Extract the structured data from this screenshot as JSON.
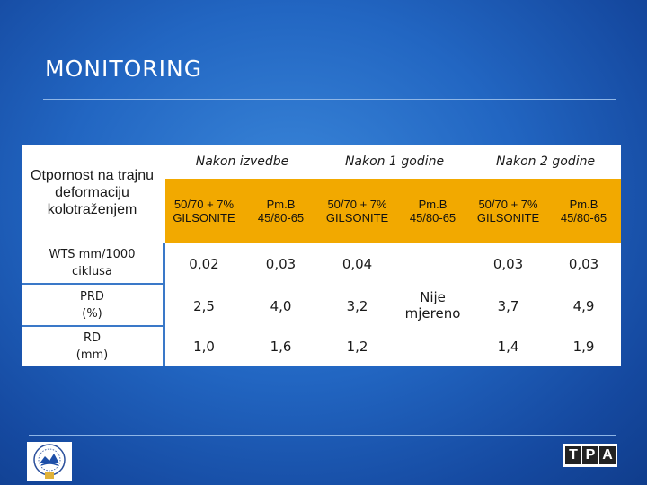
{
  "title": "MONITORING",
  "table": {
    "corner_label": [
      "Otpornost na trajnu",
      "deformaciju",
      "kolotraženjem"
    ],
    "periods": [
      "Nakon izvedbe",
      "Nakon 1 godine",
      "Nakon 2 godine"
    ],
    "subheaders": [
      [
        "50/70 + 7%",
        "GILSONITE"
      ],
      [
        "Pm.B",
        "45/80-65"
      ],
      [
        "50/70 + 7%",
        "GILSONITE"
      ],
      [
        "Pm.B",
        "45/80-65"
      ],
      [
        "50/70 + 7%",
        "GILSONITE"
      ],
      [
        "Pm.B",
        "45/80-65"
      ]
    ],
    "rows": [
      {
        "label": [
          "WTS mm/1000",
          "ciklusa"
        ],
        "values": [
          "0,02",
          "0,03",
          "0,04",
          "0,03",
          "0,03"
        ]
      },
      {
        "label": [
          "PRD",
          "(%)"
        ],
        "values": [
          "2,5",
          "4,0",
          "3,2",
          "3,7",
          "4,9"
        ]
      },
      {
        "label": [
          "RD",
          "(mm)"
        ],
        "values": [
          "1,0",
          "1,6",
          "1,2",
          "1,4",
          "1,9"
        ]
      }
    ],
    "not_measured": [
      "Nije",
      "mjereno"
    ]
  },
  "logos": {
    "right_letters": [
      "T",
      "P",
      "A"
    ]
  },
  "colors": {
    "header_orange": "#f2a900",
    "background_blue": "#2266c2"
  }
}
